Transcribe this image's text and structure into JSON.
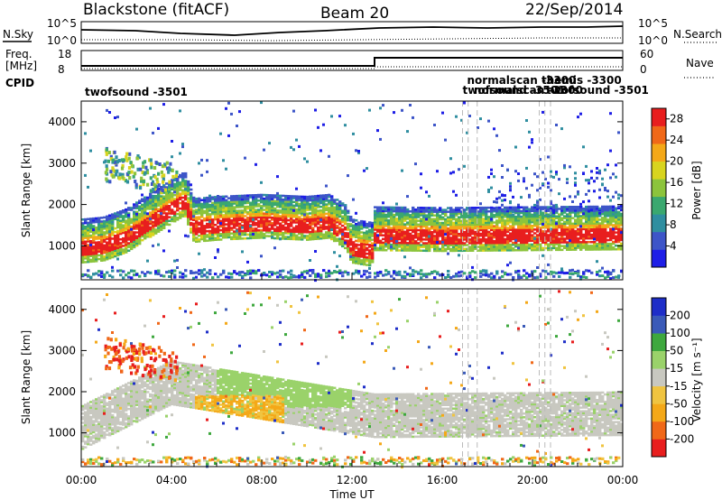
{
  "header": {
    "title": "Blackstone (fitACF)",
    "beam": "Beam 20",
    "date": "22/Sep/2014"
  },
  "top_panels": {
    "nsky_label": "N.Sky",
    "nsky_ticks": [
      "10^5",
      "10^0"
    ],
    "nsearch_label": "N.Search",
    "nsearch_ticks": [
      "10^5",
      "10^0"
    ],
    "freq_label": "Freq.",
    "freq_unit": "[MHz]",
    "freq_ticks": [
      "18",
      "8"
    ],
    "nave_label": "Nave",
    "nave_ticks": [
      "60",
      "0"
    ],
    "cpid_label": "CPID",
    "cpid_entries": [
      {
        "text": "twofsound  -3501",
        "time_h": 0.2
      },
      {
        "text": "twofsound  -3501",
        "time_h": 16.9
      },
      {
        "text": "normalscan  -3300",
        "time_h": 17.1
      },
      {
        "text": "normalscan  -3300",
        "time_h": 17.4
      },
      {
        "text": "themis  -3300",
        "time_h": 20.4
      },
      {
        "text": "twofsound  -3501",
        "time_h": 20.6
      }
    ]
  },
  "chart_data": [
    {
      "type": "heatmap",
      "name": "power",
      "xlabel": "Time UT",
      "ylabel": "Slant Range [km]",
      "xlim": [
        0,
        24
      ],
      "ylim": [
        180,
        4500
      ],
      "x_ticks": [
        "00:00",
        "04:00",
        "08:00",
        "12:00",
        "16:00",
        "20:00",
        "00:00"
      ],
      "y_ticks": [
        1000,
        2000,
        3000,
        4000
      ],
      "colorbar": {
        "label": "Power [dB]",
        "ticks": [
          4,
          8,
          12,
          16,
          20,
          24,
          28
        ],
        "range": [
          0,
          30
        ],
        "colors": [
          "#1e1ee6",
          "#3d55c8",
          "#2f8ea0",
          "#3aa86f",
          "#8cc43c",
          "#d8d41e",
          "#f4a818",
          "#f06818",
          "#e81e1e"
        ]
      },
      "features": [
        {
          "label": "ground scatter band",
          "t": [
            0,
            1,
            2,
            3,
            4,
            4.6,
            5,
            6,
            8,
            10,
            11,
            11.7,
            12,
            12.9,
            13,
            16,
            20,
            24
          ],
          "range_km": [
            1000,
            1050,
            1250,
            1600,
            1950,
            2150,
            1500,
            1550,
            1600,
            1550,
            1600,
            1350,
            1000,
            920,
            1300,
            1280,
            1300,
            1320
          ]
        },
        {
          "label": "near-range echoes",
          "t": [
            0,
            24
          ],
          "range_km": [
            300,
            300
          ]
        }
      ]
    },
    {
      "type": "heatmap",
      "name": "velocity",
      "xlabel": "Time UT",
      "ylabel": "Slant Range [km]",
      "xlim": [
        0,
        24
      ],
      "ylim": [
        180,
        4500
      ],
      "x_ticks": [
        "00:00",
        "04:00",
        "08:00",
        "12:00",
        "16:00",
        "20:00",
        "00:00"
      ],
      "y_ticks": [
        1000,
        2000,
        3000,
        4000
      ],
      "colorbar": {
        "label": "Velocity [m s⁻¹]",
        "ticks": [
          200,
          100,
          50,
          15,
          -15,
          -50,
          -100,
          -200
        ],
        "range": [
          -250,
          250
        ],
        "colors": [
          "#e81e1e",
          "#f06818",
          "#f4a818",
          "#f0c440",
          "#c8c8c0",
          "#9ad26a",
          "#3ea83e",
          "#3a5ab8",
          "#1e2ec8"
        ]
      },
      "features": [
        {
          "label": "ground scatter (gray)",
          "t": [
            0,
            4,
            13,
            24
          ],
          "range_km": [
            1000,
            2100,
            1300,
            1350
          ]
        },
        {
          "label": "negative velocities",
          "t": [
            1.2,
            4
          ],
          "range_km": [
            3100,
            2700
          ]
        }
      ]
    }
  ]
}
